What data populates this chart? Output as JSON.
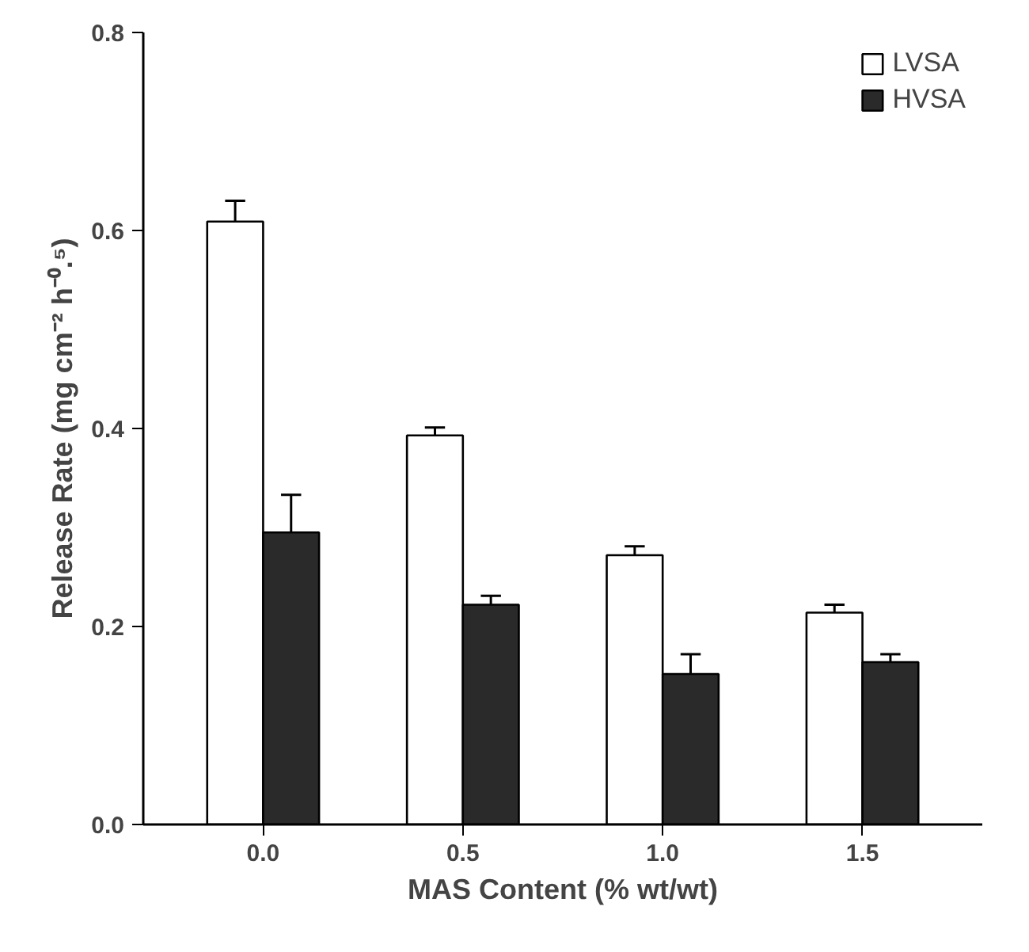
{
  "chart_data": {
    "type": "bar",
    "xlabel": "MAS Content (% wt/wt)",
    "ylabel": "Release Rate (mg cm⁻² h⁻⁰.⁵)",
    "categories": [
      "0.0",
      "0.5",
      "1.0",
      "1.5"
    ],
    "series": [
      {
        "name": "LVSA",
        "color": "#ffffff",
        "values": [
          0.609,
          0.393,
          0.272,
          0.214
        ],
        "errors": [
          [
            0.609,
            0.63
          ],
          [
            0.393,
            0.401
          ],
          [
            0.272,
            0.281
          ],
          [
            0.214,
            0.222
          ]
        ]
      },
      {
        "name": "HVSA",
        "color": "#2a2a2a",
        "values": [
          0.295,
          0.222,
          0.152,
          0.164
        ],
        "errors": [
          [
            0.295,
            0.333
          ],
          [
            0.222,
            0.231
          ],
          [
            0.152,
            0.172
          ],
          [
            0.164,
            0.172
          ]
        ]
      }
    ],
    "ylim": [
      0,
      0.8
    ],
    "yticks": [
      "0.0",
      0.2,
      0.4,
      0.6,
      0.8
    ],
    "grid": false,
    "legend": "top right"
  }
}
